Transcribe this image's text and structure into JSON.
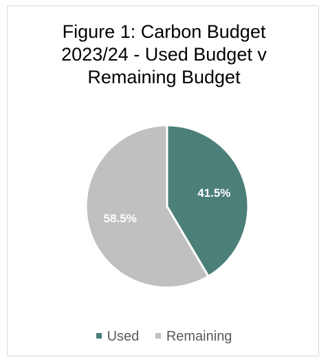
{
  "chart_data": {
    "type": "pie",
    "title_lines": [
      "Figure 1: Carbon Budget",
      "2023/24 - Used Budget v",
      "Remaining Budget"
    ],
    "categories": [
      "Used",
      "Remaining"
    ],
    "values": [
      41.5,
      58.5
    ],
    "data_labels": [
      "41.5%",
      "58.5%"
    ],
    "colors": [
      "#4b7f78",
      "#c0c0c0"
    ],
    "legend_position": "bottom"
  }
}
